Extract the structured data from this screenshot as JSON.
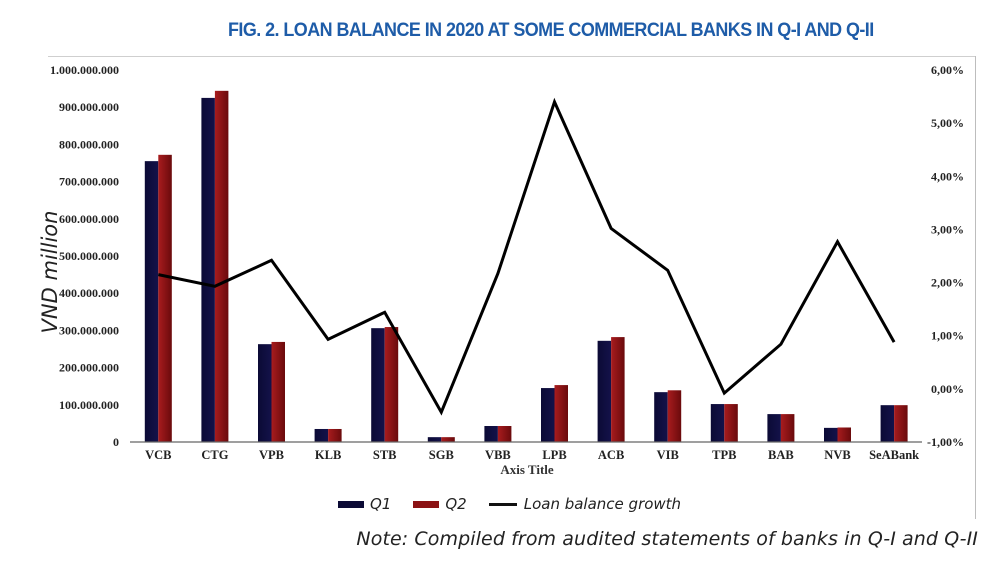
{
  "title": "FIG. 2. LOAN BALANCE IN 2020 AT SOME COMMERCIAL BANKS IN Q-I AND Q-II",
  "note": "Note: Compiled from audited statements of banks in Q-I and Q-II",
  "colors": {
    "title": "#1e5ca8",
    "q1": "#0b0a35",
    "q2": "#8b1214",
    "line": "#000000"
  },
  "legend": {
    "q1": "Q1",
    "q2": "Q2",
    "line": "Loan balance growth"
  },
  "chart_data": {
    "type": "bar+line",
    "title": "FIG. 2. LOAN BALANCE IN 2020 AT SOME COMMERCIAL BANKS IN Q-I AND Q-II",
    "xlabel": "Axis Title",
    "ylabel": "VND million",
    "y2label": "",
    "categories": [
      "VCB",
      "CTG",
      "VPB",
      "KLB",
      "STB",
      "SGB",
      "VBB",
      "LPB",
      "ACB",
      "VIB",
      "TPB",
      "BAB",
      "NVB",
      "SeABank"
    ],
    "series": [
      {
        "name": "Q1",
        "type": "bar",
        "axis": "left",
        "values": [
          755000000,
          925000000,
          263000000,
          35000000,
          306000000,
          13000000,
          43000000,
          145000000,
          272000000,
          134000000,
          102000000,
          75000000,
          38000000,
          99000000
        ]
      },
      {
        "name": "Q2",
        "type": "bar",
        "axis": "left",
        "values": [
          772000000,
          944000000,
          269000000,
          35000000,
          309000000,
          13000000,
          43000000,
          153000000,
          282000000,
          139000000,
          102000000,
          75000000,
          39000000,
          99000000
        ]
      },
      {
        "name": "Loan balance growth",
        "type": "line",
        "axis": "right",
        "values": [
          2.15,
          1.93,
          2.42,
          0.93,
          1.44,
          -0.44,
          2.17,
          5.4,
          3.02,
          2.23,
          -0.08,
          0.84,
          2.77,
          0.88
        ]
      }
    ],
    "ylim": [
      0,
      1000000000
    ],
    "y2lim": [
      -1,
      6
    ],
    "yticks": [
      "0",
      "100.000.000",
      "200.000.000",
      "300.000.000",
      "400.000.000",
      "500.000.000",
      "600.000.000",
      "700.000.000",
      "800.000.000",
      "900.000.000",
      "1.000.000.000"
    ],
    "y2ticks": [
      "-1,00%",
      "0,00%",
      "1,00%",
      "2,00%",
      "3,00%",
      "4,00%",
      "5,00%",
      "6,00%"
    ],
    "grid": false,
    "legend_position": "bottom"
  }
}
